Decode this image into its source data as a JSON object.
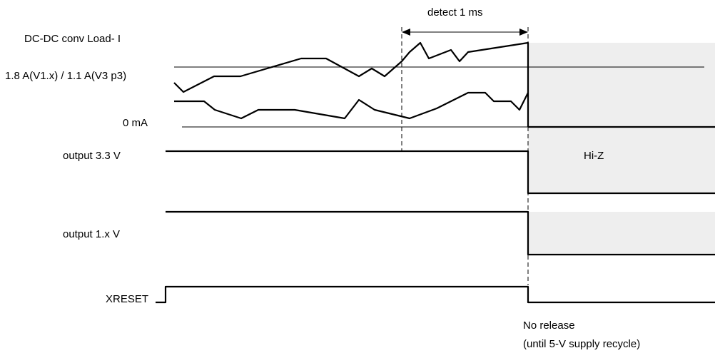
{
  "labels": {
    "detect": "detect 1 ms",
    "load_current": "DC-DC conv Load- I",
    "threshold": "1.8 A(V1.x) / 1.1 A(V3 p3)",
    "zero": "0 mA",
    "output_33": "output 3.3 V",
    "hiz": "Hi-Z",
    "output_1x": "output 1.x V",
    "xreset": "XRESET",
    "no_release": "No release",
    "until_recycle": "(until 5-V supply recycle)"
  },
  "colors": {
    "line": "#000000",
    "shade": "#eeeeee",
    "background": "#ffffff"
  }
}
